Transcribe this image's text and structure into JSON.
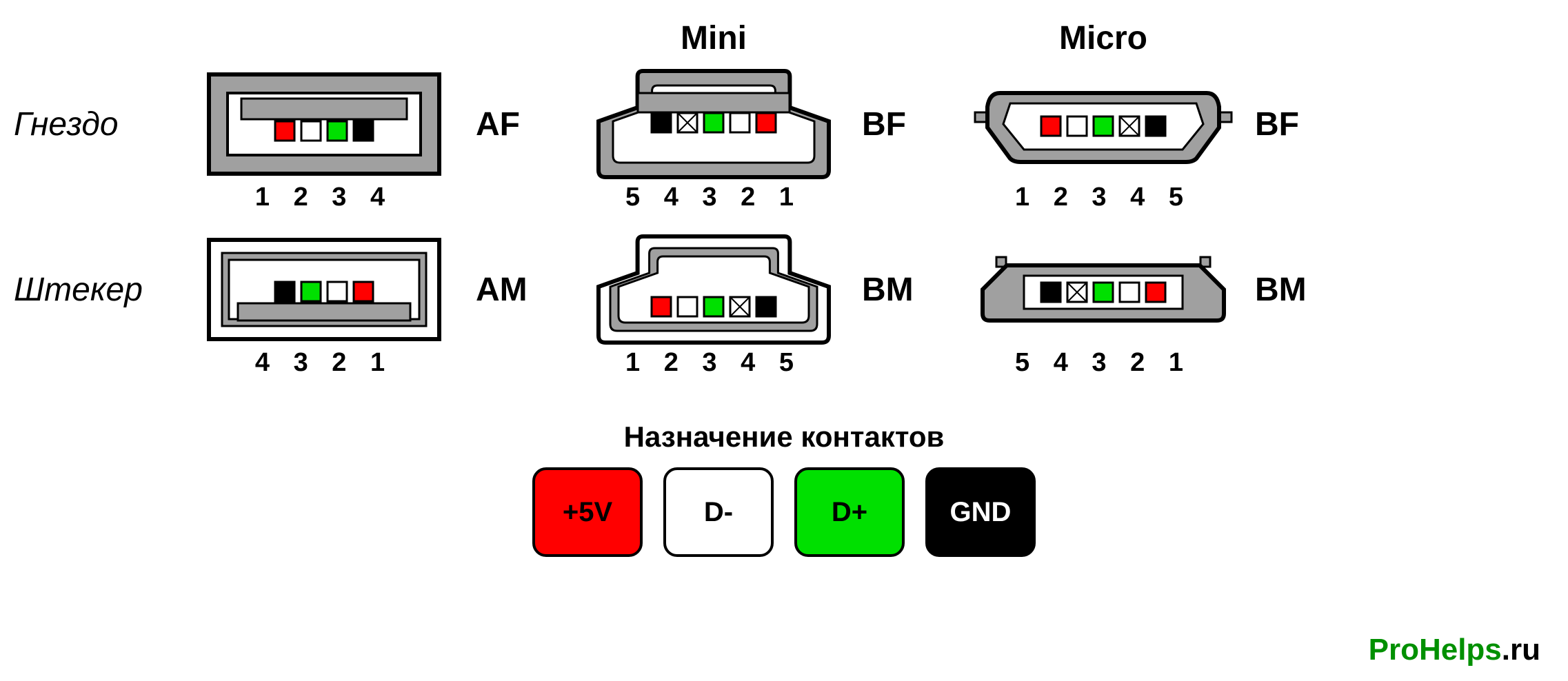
{
  "columns": {
    "mini": "Mini",
    "micro": "Micro"
  },
  "rows": {
    "socket": "Гнездо",
    "plug": "Штекер"
  },
  "colors": {
    "red": "#ff0000",
    "white": "#ffffff",
    "green": "#00e000",
    "black": "#000000",
    "gray": "#a0a0a0",
    "grayLight": "#d0d0d0",
    "outline": "#000000"
  },
  "connectors": {
    "af": {
      "label": "AF",
      "pin_colors": [
        "#ff0000",
        "#ffffff",
        "#00e000",
        "#000000"
      ],
      "pin_pattern": [
        "solid",
        "solid",
        "solid",
        "solid"
      ],
      "numbers": "1 2 3 4"
    },
    "am": {
      "label": "AM",
      "pin_colors": [
        "#000000",
        "#00e000",
        "#ffffff",
        "#ff0000"
      ],
      "pin_pattern": [
        "solid",
        "solid",
        "solid",
        "solid"
      ],
      "numbers": "4 3 2 1"
    },
    "mini_bf": {
      "label": "BF",
      "pin_colors": [
        "#000000",
        "#ffffff",
        "#00e000",
        "#ffffff",
        "#ff0000"
      ],
      "pin_pattern": [
        "solid",
        "cross",
        "solid",
        "solid",
        "solid"
      ],
      "numbers": "5 4 3 2 1"
    },
    "mini_bm": {
      "label": "BM",
      "pin_colors": [
        "#ff0000",
        "#ffffff",
        "#00e000",
        "#ffffff",
        "#000000"
      ],
      "pin_pattern": [
        "solid",
        "solid",
        "solid",
        "cross",
        "solid"
      ],
      "numbers": "1 2 3 4 5"
    },
    "micro_bf": {
      "label": "BF",
      "pin_colors": [
        "#ff0000",
        "#ffffff",
        "#00e000",
        "#ffffff",
        "#000000"
      ],
      "pin_pattern": [
        "solid",
        "solid",
        "solid",
        "cross",
        "solid"
      ],
      "numbers": "1 2 3 4 5"
    },
    "micro_bm": {
      "label": "BM",
      "pin_colors": [
        "#000000",
        "#ffffff",
        "#00e000",
        "#ffffff",
        "#ff0000"
      ],
      "pin_pattern": [
        "solid",
        "cross",
        "solid",
        "solid",
        "solid"
      ],
      "numbers": "5 4 3 2 1"
    }
  },
  "legend": {
    "title": "Назначение контактов",
    "items": [
      {
        "label": "+5V",
        "bg": "#ff0000",
        "fg": "#000000"
      },
      {
        "label": "D-",
        "bg": "#ffffff",
        "fg": "#000000"
      },
      {
        "label": "D+",
        "bg": "#00e000",
        "fg": "#000000"
      },
      {
        "label": "GND",
        "bg": "#000000",
        "fg": "#ffffff"
      }
    ]
  },
  "watermark": {
    "brand": "ProHelps",
    "tld": ".ru",
    "brand_color": "#009000",
    "tld_color": "#000000"
  },
  "stroke_width": 6,
  "pin_size": 28,
  "pin_gap": 10
}
